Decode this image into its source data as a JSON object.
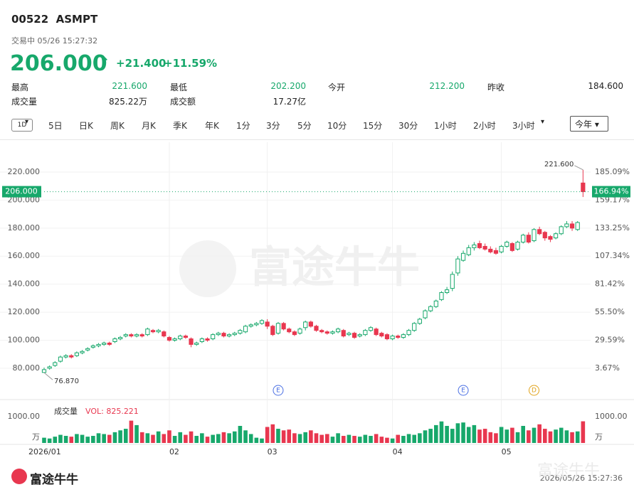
{
  "header": {
    "code": "00522",
    "name": "ASMPT",
    "status": "交易中 05/26 15:27:32",
    "price": "206.000",
    "change": "+21.400",
    "change_pct": "+11.59%"
  },
  "stats": [
    {
      "label": "最高",
      "value": "221.600"
    },
    {
      "label": "最低",
      "value": "202.200"
    },
    {
      "label": "今开",
      "value": "212.200"
    },
    {
      "label": "昨收",
      "value": "184.600"
    },
    {
      "label": "成交量",
      "value": "825.22万"
    },
    {
      "label": "成交额",
      "value": "17.27亿"
    }
  ],
  "chart_mode": "1D",
  "tabs": [
    "5日",
    "日K",
    "周K",
    "月K",
    "季K",
    "年K",
    "1分",
    "3分",
    "5分",
    "10分",
    "15分",
    "30分",
    "1小时",
    "2小时",
    "3小时"
  ],
  "period": "今年",
  "chart_data": {
    "type": "candlestick",
    "up_color": "#17a86b",
    "down_color": "#e8374f",
    "grid": true,
    "open": [
      77,
      80,
      82,
      85,
      88,
      89,
      89,
      91,
      93,
      95,
      96,
      97,
      98,
      99,
      101,
      103,
      104,
      103,
      104,
      104,
      107,
      106,
      106,
      102,
      100,
      101,
      103,
      101,
      97,
      99,
      101,
      101,
      104,
      105,
      103,
      104,
      105,
      106,
      110,
      111,
      112,
      113,
      110,
      105,
      112,
      108,
      106,
      105,
      109,
      113,
      110,
      107,
      106,
      105,
      106,
      107,
      104,
      105,
      103,
      104,
      107,
      108,
      105,
      104,
      101,
      103,
      102,
      104,
      107,
      112,
      116,
      121,
      124,
      129,
      134,
      137,
      148,
      157,
      161,
      166,
      169,
      167,
      165,
      164,
      163,
      167,
      169,
      165,
      170,
      175,
      171,
      179,
      177,
      174,
      173,
      176,
      181,
      183,
      179,
      212.2
    ],
    "high": [
      80.5,
      82,
      85,
      89,
      90,
      90,
      92,
      93,
      95,
      97,
      98,
      99,
      99,
      102,
      103,
      105,
      105,
      105,
      105,
      109,
      108,
      108,
      107,
      103,
      102,
      104,
      104,
      102,
      99,
      102,
      102,
      105,
      106,
      106,
      105,
      106,
      108,
      111,
      112,
      113,
      115,
      115,
      111,
      113,
      113,
      109,
      107,
      109,
      114,
      114,
      111,
      108,
      107,
      107,
      109,
      108,
      106,
      106,
      105,
      108,
      110,
      109,
      106,
      105,
      104,
      104,
      105,
      108,
      113,
      116,
      122,
      125,
      129,
      135,
      138,
      149,
      160,
      164,
      168,
      170,
      171,
      169,
      167,
      166,
      168,
      171,
      170,
      171,
      176,
      177,
      180,
      181,
      178,
      175,
      177,
      182,
      185,
      185,
      185,
      221.6
    ],
    "low": [
      76.87,
      79,
      81,
      84,
      87,
      87,
      88,
      90,
      92,
      94,
      95,
      96,
      96,
      98,
      100,
      102,
      102,
      102,
      102,
      103,
      105,
      105,
      102,
      99,
      99,
      100,
      101,
      95,
      96,
      98,
      99,
      100,
      103,
      102,
      102,
      103,
      104,
      105,
      109,
      110,
      111,
      108,
      103,
      104,
      107,
      105,
      103,
      104,
      107,
      109,
      106,
      105,
      104,
      104,
      105,
      102,
      103,
      101,
      102,
      103,
      106,
      103,
      102,
      100,
      100,
      101,
      101,
      103,
      106,
      111,
      115,
      120,
      123,
      128,
      133,
      135,
      146,
      156,
      160,
      164,
      165,
      164,
      162,
      161,
      162,
      166,
      163,
      164,
      169,
      169,
      170,
      175,
      171,
      170,
      172,
      175,
      180,
      178,
      178,
      202.2
    ],
    "close": [
      79,
      81,
      84,
      88,
      89,
      88,
      91,
      92,
      94,
      96,
      97,
      98,
      97,
      101,
      102,
      104,
      103,
      104,
      103,
      108,
      106,
      107,
      103,
      100,
      101,
      103,
      102,
      97,
      98,
      101,
      100,
      104,
      105,
      103,
      104,
      105,
      107,
      110,
      111,
      112,
      114,
      110,
      104,
      112,
      108,
      106,
      104,
      108,
      113,
      110,
      107,
      106,
      105,
      106,
      108,
      103,
      105,
      102,
      104,
      107,
      109,
      104,
      103,
      101,
      103,
      102,
      104,
      107,
      112,
      115,
      121,
      124,
      128,
      134,
      136,
      147,
      158,
      162,
      166,
      168,
      166,
      165,
      163,
      162,
      167,
      170,
      164,
      170,
      175,
      170,
      179,
      176,
      173,
      172,
      176,
      181,
      183,
      180,
      184,
      206
    ],
    "volume": [
      200,
      170,
      240,
      310,
      270,
      240,
      340,
      310,
      240,
      270,
      370,
      340,
      310,
      410,
      480,
      540,
      850,
      680,
      410,
      370,
      310,
      440,
      340,
      480,
      270,
      410,
      310,
      440,
      270,
      370,
      240,
      310,
      340,
      410,
      370,
      440,
      650,
      480,
      340,
      200,
      170,
      610,
      710,
      540,
      480,
      510,
      370,
      340,
      410,
      480,
      370,
      310,
      340,
      240,
      370,
      270,
      310,
      270,
      240,
      310,
      270,
      340,
      240,
      200,
      170,
      310,
      270,
      340,
      310,
      370,
      480,
      540,
      680,
      820,
      650,
      540,
      750,
      780,
      610,
      680,
      510,
      540,
      410,
      370,
      610,
      510,
      580,
      410,
      650,
      480,
      580,
      710,
      540,
      440,
      510,
      580,
      480,
      410,
      440,
      825.221
    ],
    "ylim": [
      68.8,
      241.3
    ],
    "yticks": [
      {
        "value": 80,
        "label": "80.000"
      },
      {
        "value": 100,
        "label": "100.000"
      },
      {
        "value": 120,
        "label": "120.000"
      },
      {
        "value": 140,
        "label": "140.000"
      },
      {
        "value": 160,
        "label": "160.000"
      },
      {
        "value": 180,
        "label": "180.000"
      },
      {
        "value": 200,
        "label": "200.000"
      },
      {
        "value": 220,
        "label": "220.000"
      }
    ],
    "y2lim": [
      -10.84,
      212.69
    ],
    "y2ticks": [
      {
        "value": 3.67,
        "label": "3.67%"
      },
      {
        "value": 29.59,
        "label": "29.59%"
      },
      {
        "value": 55.5,
        "label": "55.50%"
      },
      {
        "value": 81.42,
        "label": "81.42%"
      },
      {
        "value": 107.34,
        "label": "107.34%"
      },
      {
        "value": 133.25,
        "label": "133.25%"
      },
      {
        "value": 159.17,
        "label": "159.17%"
      },
      {
        "value": 185.09,
        "label": "185.09%"
      }
    ],
    "xticks": [
      {
        "value": 0,
        "label": "2026/01"
      },
      {
        "value": 23,
        "label": "02"
      },
      {
        "value": 41,
        "label": "03"
      },
      {
        "value": 64,
        "label": "04"
      },
      {
        "value": 84,
        "label": "05"
      }
    ],
    "events": [
      {
        "index": 43,
        "label": "E",
        "color": "#4a6fe3"
      },
      {
        "index": 77,
        "label": "E",
        "color": "#4a6fe3"
      },
      {
        "index": 90,
        "label": "D",
        "color": "#e0a21a"
      }
    ],
    "last_price": {
      "value": 206,
      "label": "206.000"
    },
    "last_pct_label": "166.94%",
    "high_annotation": {
      "value": 221.6,
      "label": "221.600"
    },
    "low_annotation": {
      "value": 76.87,
      "label": "76.870"
    },
    "volume_title": "成交量",
    "volume_value_label": "VOL: 825.221",
    "volume_ylim": [
      0,
      1300
    ],
    "volume_ticks": [
      {
        "value": 1000,
        "label": "1000.00"
      }
    ],
    "volume_unit": "万"
  },
  "footer": {
    "logo": "富途牛牛",
    "timestamp": "2026/05/26 15:27:36"
  },
  "watermark": "富途牛牛"
}
